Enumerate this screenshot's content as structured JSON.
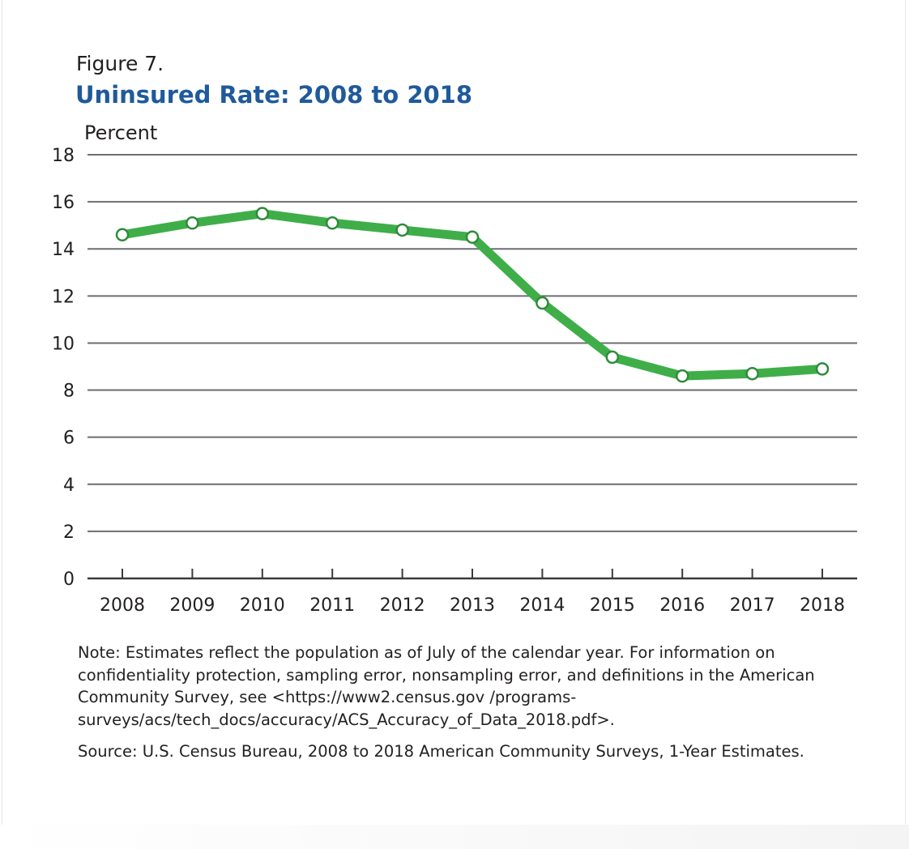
{
  "chart_data": {
    "type": "line",
    "figure_label": "Figure 7.",
    "title": "Uninsured Rate: 2008 to 2018",
    "xlabel": "",
    "ylabel": "Percent",
    "ylim": [
      0,
      18
    ],
    "yticks": [
      "0",
      "2",
      "4",
      "6",
      "8",
      "10",
      "12",
      "14",
      "16",
      "18"
    ],
    "grid": true,
    "categories": [
      "2008",
      "2009",
      "2010",
      "2011",
      "2012",
      "2013",
      "2014",
      "2015",
      "2016",
      "2017",
      "2018"
    ],
    "series": [
      {
        "name": "Uninsured rate",
        "values": [
          14.6,
          15.1,
          15.5,
          15.1,
          14.8,
          14.5,
          11.7,
          9.4,
          8.6,
          8.7,
          8.9
        ],
        "color": "#3fae49"
      }
    ]
  },
  "notes": {
    "note": "Note: Estimates reflect the population as of July of the calendar year. For information on confidentiality protection, sampling error, nonsampling error, and definitions in the American Community Survey, see <https://www2.census.gov /programs-surveys/acs/tech_docs/accuracy/ACS_Accuracy_of_Data_2018.pdf>.",
    "source": "Source: U.S. Census Bureau, 2008 to 2018 American Community Surveys, 1-Year Estimates."
  },
  "colors": {
    "title": "#1f5a9a",
    "line": "#3fae49",
    "grid": "#6d6e71"
  }
}
